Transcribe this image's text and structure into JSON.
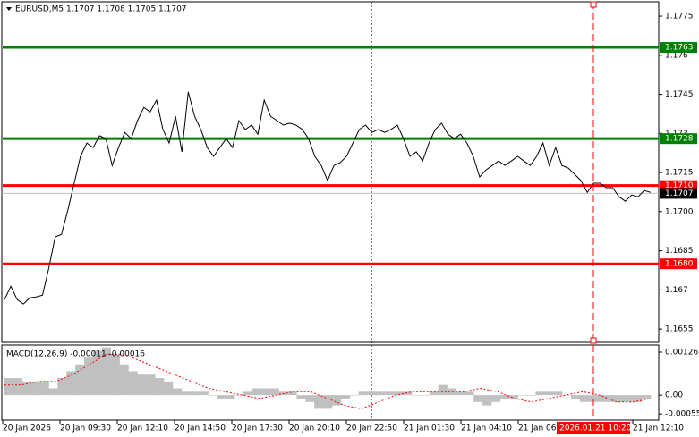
{
  "chart_data": [
    {
      "type": "line",
      "title": "EURUSD,M5  1.1707 1.1708 1.1705 1.1707",
      "color": "#000000",
      "values": [
        1.16663,
        1.16714,
        1.16663,
        1.16646,
        1.1667,
        1.16673,
        1.1668,
        1.16783,
        1.16903,
        1.16913,
        1.17006,
        1.17109,
        1.17212,
        1.17263,
        1.17246,
        1.17291,
        1.1728,
        1.17177,
        1.17246,
        1.17304,
        1.1728,
        1.17349,
        1.174,
        1.17383,
        1.17428,
        1.17315,
        1.17263,
        1.17366,
        1.17229,
        1.17459,
        1.17366,
        1.17315,
        1.17246,
        1.17212,
        1.17246,
        1.1728,
        1.17246,
        1.17349,
        1.17315,
        1.17332,
        1.17297,
        1.17428,
        1.17366,
        1.17349,
        1.17332,
        1.17339,
        1.17332,
        1.17315,
        1.1728,
        1.17212,
        1.17177,
        1.17119,
        1.17177,
        1.17188,
        1.17212,
        1.17263,
        1.17315,
        1.17332,
        1.17304,
        1.17315,
        1.17304,
        1.17315,
        1.17332,
        1.1728,
        1.17212,
        1.17229,
        1.17194,
        1.17263,
        1.17315,
        1.17339,
        1.17297,
        1.1728,
        1.17297,
        1.17263,
        1.17212,
        1.17133,
        1.1716,
        1.17177,
        1.17194,
        1.17177,
        1.17194,
        1.17212,
        1.17194,
        1.17177,
        1.17212,
        1.17263,
        1.17177,
        1.17246,
        1.17177,
        1.17167,
        1.17143,
        1.17119,
        1.17074,
        1.17109,
        1.17109,
        1.17092,
        1.17092,
        1.17057,
        1.1704,
        1.17064,
        1.17057,
        1.17081,
        1.17074
      ],
      "ylim": [
        1.16499,
        1.17805
      ],
      "yticks": [
        1.1655,
        1.167,
        1.1685,
        {
          "value": 1.17,
          "label": "1.1700"
        },
        1.1715,
        1.173,
        1.1745,
        1.176,
        1.1775
      ],
      "levels": [
        {
          "value": 1.1763,
          "label": "1.1763",
          "color": "#008000"
        },
        {
          "value": 1.1728,
          "label": "1.1728",
          "color": "#008000"
        },
        {
          "value": 1.171,
          "label": "1.1710",
          "color": "#ff0000"
        },
        {
          "value": 1.168,
          "label": "1.1680",
          "color": "#ff0000"
        }
      ],
      "current_price": 1.1707,
      "x_labels": [
        "20 Jan 2026",
        "20 Jan 09:30",
        "20 Jan 12:10",
        "20 Jan 14:50",
        "20 Jan 17:30",
        "20 Jan 20:10",
        "20 Jan 22:50",
        "21 Jan 01:30",
        "21 Jan 04:10",
        "21 Jan 06:50",
        "21 Jan 12:10"
      ],
      "cursor_label": "2026.01.21 10:20"
    },
    {
      "type": "macd",
      "title": "MACD(12,26,9) -0.00011 -0.00016",
      "histogram_color": "#c0c0c0",
      "signal_color": "#ff0000",
      "histogram": [
        0.0005,
        0.0005,
        0.0004,
        0.0004,
        0.0004,
        0.0002,
        0.0005,
        0.0007,
        0.0009,
        0.0011,
        0.0013,
        0.0014,
        0.0012,
        0.0009,
        0.0007,
        0.0006,
        0.0006,
        0.0005,
        0.0004,
        0.0002,
        0.0001,
        0.0001,
        0.0001,
        0,
        -0.0001,
        -0.0001,
        0,
        0.0001,
        0.0002,
        0.0002,
        0.0002,
        0.0001,
        0.0001,
        -0.0001,
        -0.0002,
        -0.0004,
        -0.0004,
        -0.0003,
        -0.0001,
        0,
        0.0001,
        0.0001,
        0.0001,
        0.0001,
        0.0001,
        0.0001,
        0,
        0,
        0.0001,
        0.0003,
        0.0002,
        0.0001,
        0.0001,
        -0.0002,
        -0.0003,
        -0.0002,
        -0.0001,
        -0.0001,
        0,
        0,
        0.0001,
        0.0001,
        0.0001,
        0,
        -0.0001,
        -0.0002,
        -0.0002,
        -0.0002,
        -0.0002,
        -0.0002,
        -0.0002,
        -0.0002,
        -0.0001
      ],
      "signal": [
        0.0003,
        0.0003,
        0.0004,
        0.0004,
        0.0006,
        0.0009,
        0.0012,
        0.0012,
        0.001,
        0.0008,
        0.0006,
        0.0004,
        0.0002,
        0.0001,
        0,
        -0.0001,
        0,
        0.0001,
        0.0001,
        -0.0001,
        -0.0003,
        -0.0004,
        -0.0002,
        0,
        0.0001,
        0.0001,
        0.0001,
        0.0001,
        0.0002,
        0.0001,
        -0.0001,
        -0.0002,
        -0.0001,
        0,
        0.0001,
        0,
        -0.0002,
        -0.0002,
        -0.0001
      ],
      "ylim": [
        -0.00073,
        0.00147
      ],
      "yticks": [
        0.00126,
        {
          "value": 0,
          "label": "0.00"
        },
        -0.00055
      ]
    }
  ]
}
